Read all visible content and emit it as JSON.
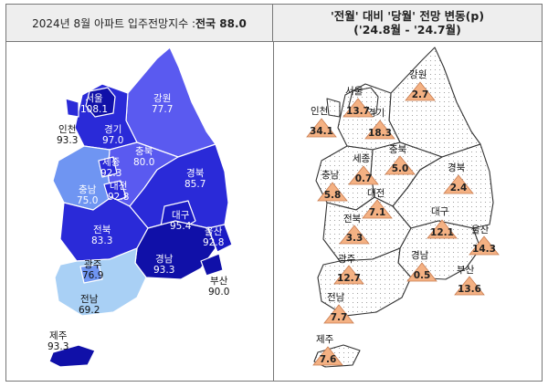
{
  "left_panel": {
    "title_prefix": "2024년 8월 아파트 입주전망지수 : ",
    "title_bold": "전국 88.0",
    "regions": [
      {
        "key": "seoul",
        "name": "서울",
        "value": "108.1"
      },
      {
        "key": "incheon",
        "name": "인천",
        "value": "93.3"
      },
      {
        "key": "gyeonggi",
        "name": "경기",
        "value": "97.0"
      },
      {
        "key": "gangwon",
        "name": "강원",
        "value": "77.7"
      },
      {
        "key": "chungbuk",
        "name": "충북",
        "value": "80.0"
      },
      {
        "key": "sejong",
        "name": "세종",
        "value": "92.3"
      },
      {
        "key": "chungnam",
        "name": "충남",
        "value": "75.0"
      },
      {
        "key": "daejeon",
        "name": "대전",
        "value": "92.8"
      },
      {
        "key": "gyeongbuk",
        "name": "경북",
        "value": "85.7"
      },
      {
        "key": "daegu",
        "name": "대구",
        "value": "95.4"
      },
      {
        "key": "ulsan",
        "name": "울산",
        "value": "92.8"
      },
      {
        "key": "jeonbuk",
        "name": "전북",
        "value": "83.3"
      },
      {
        "key": "gwangju",
        "name": "광주",
        "value": "76.9"
      },
      {
        "key": "gyeongnam",
        "name": "경남",
        "value": "93.3"
      },
      {
        "key": "busan",
        "name": "부산",
        "value": "90.0"
      },
      {
        "key": "jeonnam",
        "name": "전남",
        "value": "69.2"
      },
      {
        "key": "jeju",
        "name": "제주",
        "value": "93.3"
      }
    ]
  },
  "right_panel": {
    "title_line1": "'전월' 대비 '당월' 전망 변동(p)",
    "title_line2": "('24.8월 - '24.7월)",
    "regions": [
      {
        "key": "gangwon",
        "name": "강원",
        "change": "2.7"
      },
      {
        "key": "seoul",
        "name": "서울",
        "change": "13.7"
      },
      {
        "key": "incheon",
        "name": "인천",
        "change": "34.1"
      },
      {
        "key": "gyeonggi",
        "name": "경기",
        "change": "18.3"
      },
      {
        "key": "chungbuk",
        "name": "충북",
        "change": "5.0"
      },
      {
        "key": "sejong",
        "name": "세종",
        "change": "0.7"
      },
      {
        "key": "chungnam",
        "name": "충남",
        "change": "5.8"
      },
      {
        "key": "daejeon",
        "name": "대전",
        "change": "7.1"
      },
      {
        "key": "gyeongbuk",
        "name": "경북",
        "change": "2.4"
      },
      {
        "key": "jeonbuk",
        "name": "전북",
        "change": "3.3"
      },
      {
        "key": "daegu",
        "name": "대구",
        "change": "12.1"
      },
      {
        "key": "ulsan",
        "name": "울산",
        "change": "14.3"
      },
      {
        "key": "gwangju",
        "name": "광주",
        "change": "12.7"
      },
      {
        "key": "gyeongnam",
        "name": "경남",
        "change": "0.5"
      },
      {
        "key": "busan",
        "name": "부산",
        "change": "13.6"
      },
      {
        "key": "jeonnam",
        "name": "전남",
        "change": "7.7"
      },
      {
        "key": "jeju",
        "name": "제주",
        "change": "7.6"
      }
    ]
  },
  "colors": {
    "header_bg": "#eeeeee",
    "shade_darkest": "#1010a8",
    "shade_dark": "#2a2ad8",
    "shade_mid": "#5a5af0",
    "shade_light": "#6f95f2",
    "shade_lightest": "#a9d0f5",
    "triangle_fill": "#f4b183",
    "map_outline": "#333333"
  }
}
